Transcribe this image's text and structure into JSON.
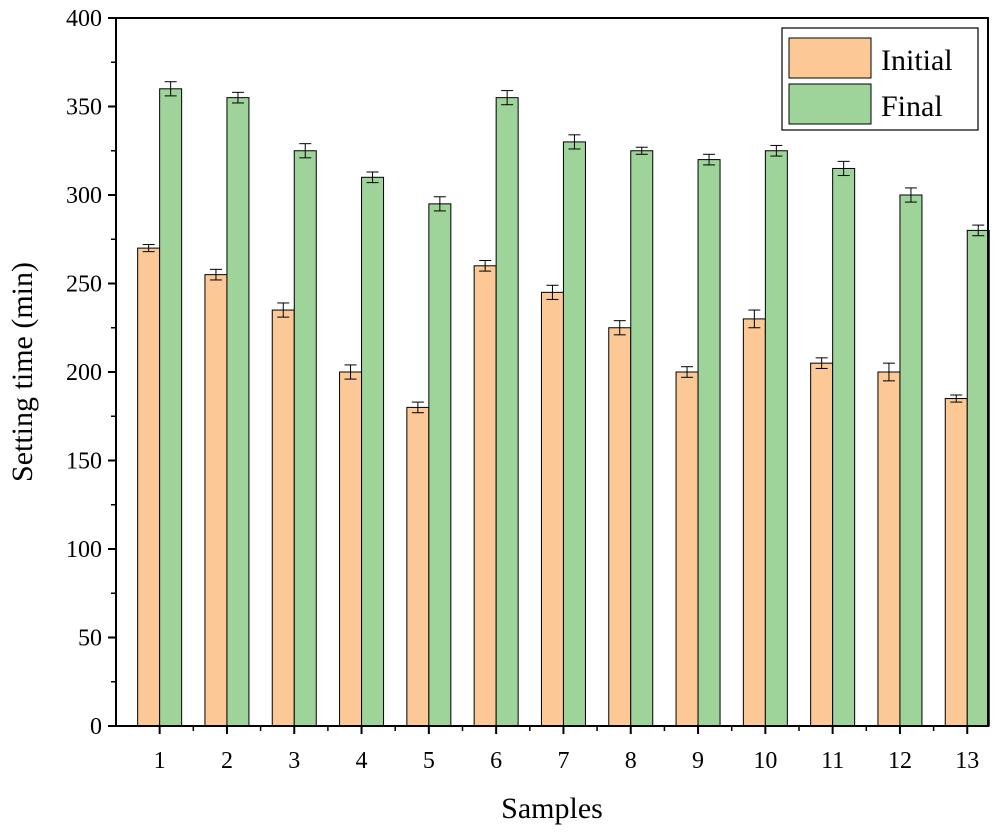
{
  "chart_data": {
    "type": "bar",
    "title": "",
    "xlabel": "Samples",
    "ylabel": "Setting time (min)",
    "ylim": [
      0,
      400
    ],
    "y_major_ticks": [
      0,
      50,
      100,
      150,
      200,
      250,
      300,
      350,
      400
    ],
    "categories": [
      "1",
      "2",
      "3",
      "4",
      "5",
      "6",
      "7",
      "8",
      "9",
      "10",
      "11",
      "12",
      "13"
    ],
    "series": [
      {
        "name": "Initial",
        "color": "#FBC896",
        "values": [
          270,
          255,
          235,
          200,
          180,
          260,
          245,
          225,
          200,
          230,
          205,
          200,
          185
        ],
        "errors": [
          2,
          3,
          4,
          4,
          3,
          3,
          4,
          4,
          3,
          5,
          3,
          5,
          2
        ]
      },
      {
        "name": "Final",
        "color": "#9ED39A",
        "values": [
          360,
          355,
          325,
          310,
          295,
          355,
          330,
          325,
          320,
          325,
          315,
          300,
          280
        ],
        "errors": [
          4,
          3,
          4,
          3,
          4,
          4,
          4,
          2,
          3,
          3,
          4,
          4,
          3
        ]
      }
    ],
    "legend_position": "top-right",
    "grid": false
  }
}
